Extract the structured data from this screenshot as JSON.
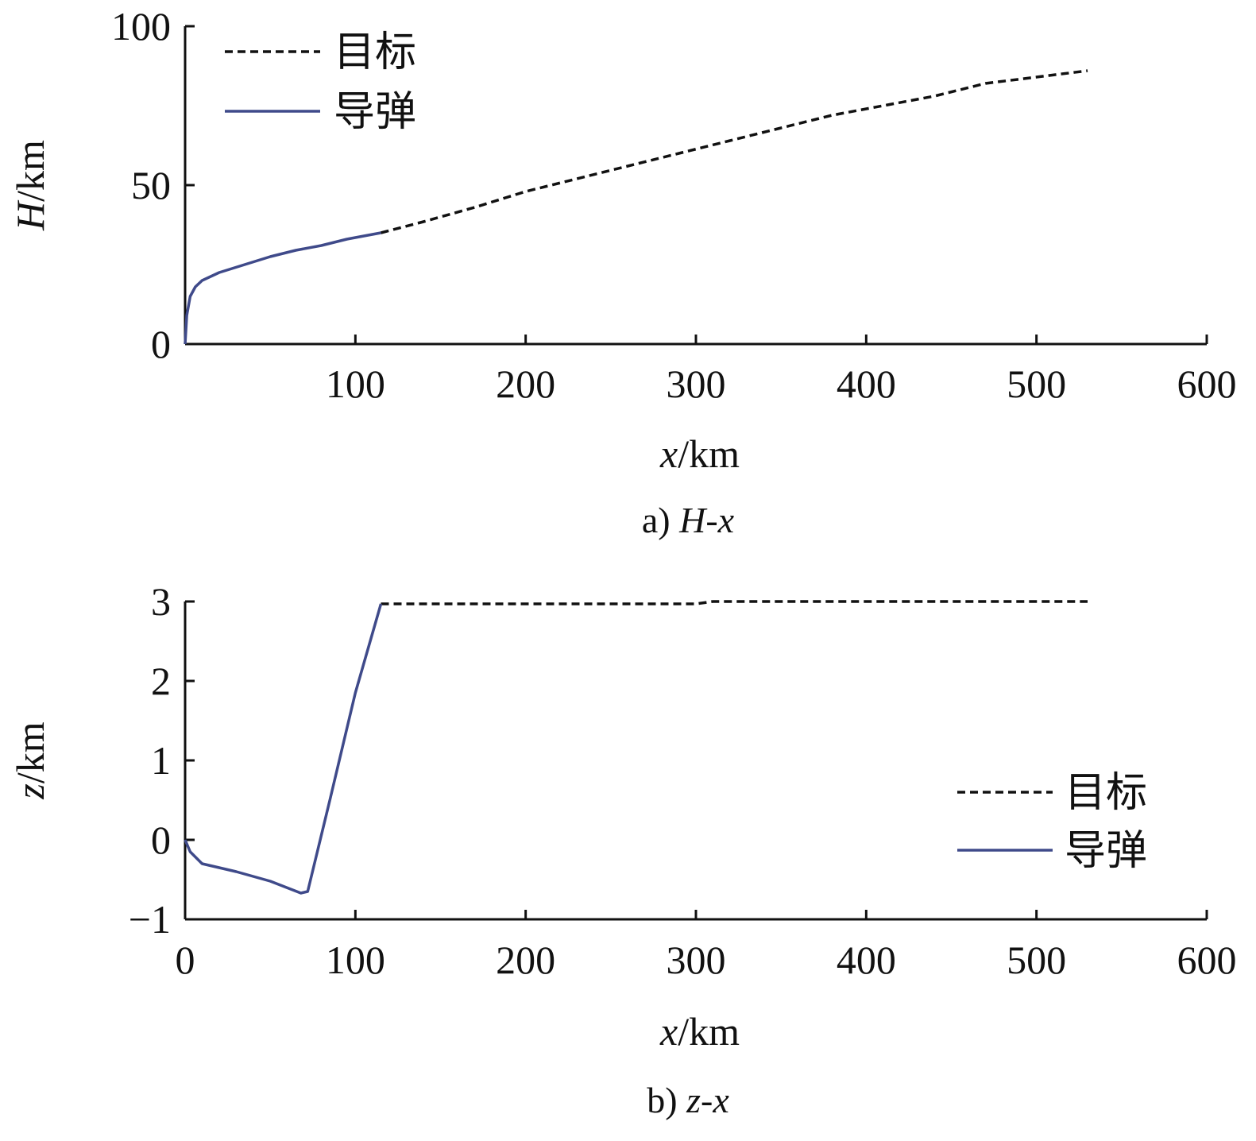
{
  "chart_data": [
    {
      "type": "line",
      "caption_prefix": "a) ",
      "caption_var": "H-x",
      "xlabel_var": "x",
      "xlabel_unit": "/km",
      "ylabel_var": "H",
      "ylabel_unit": "/km",
      "xlim": [
        0,
        600
      ],
      "ylim": [
        0,
        100
      ],
      "xticks": [
        100,
        200,
        300,
        400,
        500,
        600
      ],
      "yticks": [
        0,
        50,
        100
      ],
      "grid": false,
      "legend_position": "top-left",
      "series": [
        {
          "name": "目标",
          "style": "dashed",
          "color": "#111111",
          "x": [
            115,
            140,
            170,
            200,
            230,
            260,
            290,
            320,
            350,
            380,
            410,
            440,
            470,
            500,
            530
          ],
          "y": [
            35,
            38.5,
            43,
            48,
            52,
            56,
            60,
            64,
            68,
            72,
            75,
            78,
            82,
            84,
            86
          ]
        },
        {
          "name": "导弹",
          "style": "solid",
          "color": "#3f4a8a",
          "x": [
            0,
            1,
            3,
            6,
            10,
            20,
            35,
            50,
            65,
            80,
            95,
            105,
            115
          ],
          "y": [
            0,
            9,
            15,
            18,
            20,
            22.5,
            25,
            27.5,
            29.5,
            31,
            33,
            34,
            35
          ]
        }
      ]
    },
    {
      "type": "line",
      "caption_prefix": "b) ",
      "caption_var": "z-x",
      "xlabel_var": "x",
      "xlabel_unit": "/km",
      "ylabel_var": "z",
      "ylabel_unit": "/km",
      "xlim": [
        0,
        600
      ],
      "ylim": [
        -1,
        3
      ],
      "xticks": [
        0,
        100,
        200,
        300,
        400,
        500,
        600
      ],
      "yticks": [
        -1,
        0,
        1,
        2,
        3
      ],
      "ytick_labels": [
        "−1",
        "0",
        "1",
        "2",
        "3"
      ],
      "grid": false,
      "legend_position": "right",
      "series": [
        {
          "name": "目标",
          "style": "dashed",
          "color": "#111111",
          "x": [
            115,
            200,
            300,
            310,
            400,
            500,
            530
          ],
          "y": [
            2.97,
            2.97,
            2.97,
            3.0,
            3.0,
            3.0,
            3.0
          ]
        },
        {
          "name": "导弹",
          "style": "solid",
          "color": "#3f4a8a",
          "x": [
            0,
            3,
            10,
            30,
            50,
            68,
            72,
            85,
            100,
            115
          ],
          "y": [
            0,
            -0.15,
            -0.3,
            -0.4,
            -0.52,
            -0.67,
            -0.65,
            0.5,
            1.85,
            2.97
          ]
        }
      ]
    }
  ]
}
